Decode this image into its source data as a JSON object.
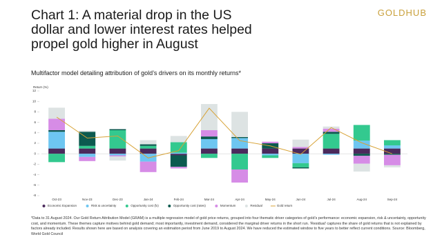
{
  "chart_data": {
    "type": "bar",
    "title": "Chart 1: A material drop in the US dollar and lower interest rates helped propel gold higher in August",
    "logo": "GOLDHUB",
    "subtitle": "Multifactor model detailing attribution of gold’s drivers on its monthly returns*",
    "y_label": "Return (%)",
    "footnote": "*Data to 31 August 2024. Our Gold Return Attribution Model (GRAM) is a multiple regression model of gold price returns, grouped into four thematic driver categories of gold’s performance: economic expansion, risk & uncertainty, opportunity cost, and momentum. These themes capture motives behind gold demand; most importantly, investment demand, considered the marginal driver returns in the short run. ‘Residual’ captures the share of gold returns that is not explained by factors already included. Results shown here are based on analysis covering an estimation period from June 2019 to August 2024. We have reduced the estimated window to five years to better reflect current conditions. Source: Bloomberg, World Gold Council",
    "categories": [
      "Oct-23",
      "Nov-23",
      "Dec-23",
      "Jan-24",
      "Feb-24",
      "Mar-24",
      "Apr-24",
      "May-24",
      "Jun-24",
      "Jul-24",
      "Aug-24",
      "Sep-24"
    ],
    "series": [
      {
        "name": "Economic Expansion",
        "color": "#4b2a5c",
        "values": [
          1.0,
          1.0,
          1.0,
          1.0,
          -0.3,
          1.0,
          1.0,
          1.0,
          1.0,
          1.0,
          1.0,
          1.0
        ]
      },
      {
        "name": "Risk & uncertainty",
        "color": "#6ec6f1",
        "values": [
          3.2,
          -0.6,
          -0.3,
          -1.5,
          0.2,
          1.8,
          2.0,
          -0.3,
          -1.8,
          -0.2,
          1.5,
          0.6
        ]
      },
      {
        "name": "Opportunity cost (fx)",
        "color": "#33c98f",
        "values": [
          -1.6,
          0.5,
          3.5,
          0.5,
          2.0,
          -0.8,
          -3.0,
          -0.5,
          -0.8,
          2.8,
          3.0,
          1.0
        ]
      },
      {
        "name": "Opportunity cost (rates)",
        "color": "#0c5a4f",
        "values": [
          0.3,
          2.7,
          0.2,
          0.3,
          -2.2,
          0.5,
          0.2,
          1.0,
          -0.2,
          0.4,
          -0.4,
          -0.2
        ]
      },
      {
        "name": "Momentum",
        "color": "#d68ce6",
        "values": [
          2.2,
          -0.8,
          -0.2,
          -2.0,
          -0.3,
          1.2,
          -2.5,
          0.3,
          0.3,
          0.6,
          -1.5,
          -2.0
        ]
      },
      {
        "name": "Residual",
        "color": "#dde3e3",
        "values": [
          2.1,
          0.2,
          -0.8,
          0.8,
          1.2,
          5.0,
          4.8,
          0.0,
          1.4,
          0.4,
          -1.5,
          -0.4
        ]
      },
      {
        "name": "Gold return",
        "type": "line",
        "color": "#d7a235",
        "values": [
          7.0,
          3.0,
          3.4,
          -0.8,
          0.6,
          8.7,
          2.5,
          1.5,
          -0.1,
          5.0,
          2.1,
          0.0
        ]
      }
    ],
    "ylim": [
      -8,
      12
    ],
    "yticks": [
      -8,
      -6,
      -4,
      -2,
      0,
      2,
      4,
      6,
      8,
      10,
      12
    ],
    "grid": false
  }
}
